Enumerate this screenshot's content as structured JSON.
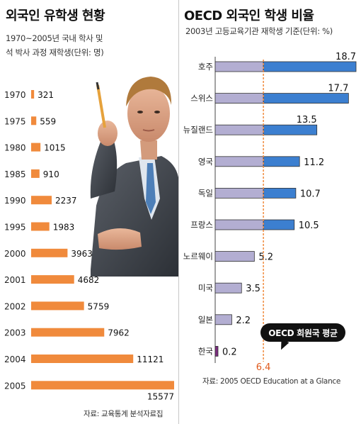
{
  "left": {
    "title": "외국인 유학생 현황",
    "subtitle_line1": "1970~2005년 국내 학사 및",
    "subtitle_line2": "석 박사 과정 재학생(단위: 명)",
    "source": "자료: 교육통계 분석자료집"
  },
  "right": {
    "title": "OECD 외국인 학생 비율",
    "subtitle": "2003년 고등교육기관 재학생 기준(단위: %)",
    "source": "자료: 2005 OECD Education at a Glance",
    "average_label": "OECD 회원국 평균"
  },
  "chart_data": [
    {
      "type": "bar",
      "orientation": "horizontal",
      "title": "외국인 유학생 현황",
      "subtitle": "1970~2005년 국내 학사 및 석 박사 과정 재학생(단위: 명)",
      "categories": [
        "1970",
        "1975",
        "1980",
        "1985",
        "1990",
        "1995",
        "2000",
        "2001",
        "2002",
        "2003",
        "2004",
        "2005"
      ],
      "values": [
        321,
        559,
        1015,
        910,
        2237,
        1983,
        3963,
        4682,
        5759,
        7962,
        11121,
        15577
      ],
      "value_labels": [
        "321",
        "559",
        "1015",
        "910",
        "2237",
        "1983",
        "3963",
        "4682",
        "5759",
        "7962",
        "11121",
        "15577"
      ],
      "xlim": [
        0,
        15577
      ],
      "color": "#f08a3c",
      "grid": false
    },
    {
      "type": "bar",
      "orientation": "horizontal",
      "title": "OECD 외국인 학생 비율",
      "subtitle": "2003년 고등교육기관 재학생 기준(단위: %)",
      "categories": [
        "호주",
        "스위스",
        "뉴질랜드",
        "영국",
        "독일",
        "프랑스",
        "노르웨이",
        "미국",
        "일본",
        "한국"
      ],
      "values": [
        18.7,
        17.7,
        13.5,
        11.2,
        10.7,
        10.5,
        5.2,
        3.5,
        2.2,
        0.2
      ],
      "value_labels": [
        "18.7",
        "17.7",
        "13.5",
        "11.2",
        "10.7",
        "10.5",
        "5.2",
        "3.5",
        "2.2",
        "0.2"
      ],
      "reference_line": {
        "value": 6.4,
        "label": "6.4",
        "name": "OECD 회원국 평균",
        "color": "#f08a3c"
      },
      "xlim": [
        0,
        18.7
      ],
      "colors": {
        "below_average": "#b3aed2",
        "above_average": "#3c7fd0",
        "korea": "#7b2d7f"
      },
      "grid": false
    }
  ]
}
